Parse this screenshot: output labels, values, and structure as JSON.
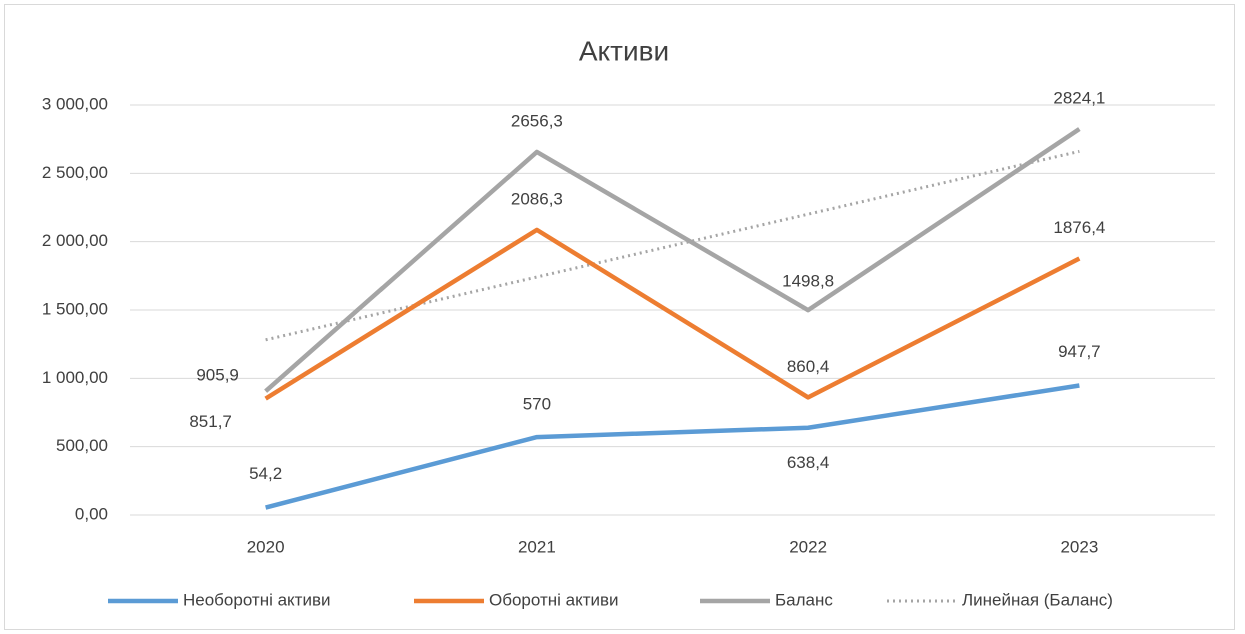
{
  "chart_data": {
    "type": "line",
    "title": "Активи",
    "categories": [
      "2020",
      "2021",
      "2022",
      "2023"
    ],
    "series": [
      {
        "name": "Необоротні активи",
        "color": "#5b9bd5",
        "values": [
          54.2,
          570,
          638.4,
          947.7
        ],
        "value_labels": [
          "54,2",
          "570",
          "638,4",
          "947,7"
        ]
      },
      {
        "name": "Оборотні активи",
        "color": "#ed7d31",
        "values": [
          851.7,
          2086.3,
          860.4,
          1876.4
        ],
        "value_labels": [
          "851,7",
          "2086,3",
          "860,4",
          "1876,4"
        ]
      },
      {
        "name": "Баланс",
        "color": "#a5a5a5",
        "values": [
          905.9,
          2656.3,
          1498.8,
          2824.1
        ],
        "value_labels": [
          "905,9",
          "2656,3",
          "1498,8",
          "2824,1"
        ]
      },
      {
        "name": "Линейная (Баланс)",
        "color": "#a5a5a5",
        "dash": true,
        "values": [
          1281.7,
          1741.4,
          2201.1,
          2660.8
        ]
      }
    ],
    "ylim": [
      0,
      3000
    ],
    "yticks": [
      {
        "value": 0,
        "label": "0,00"
      },
      {
        "value": 500,
        "label": "500,00"
      },
      {
        "value": 1000,
        "label": "1 000,00"
      },
      {
        "value": 1500,
        "label": "1 500,00"
      },
      {
        "value": 2000,
        "label": "2 000,00"
      },
      {
        "value": 2500,
        "label": "2 500,00"
      },
      {
        "value": 3000,
        "label": "3 000,00"
      }
    ],
    "grid": true,
    "legend": "bottom"
  }
}
